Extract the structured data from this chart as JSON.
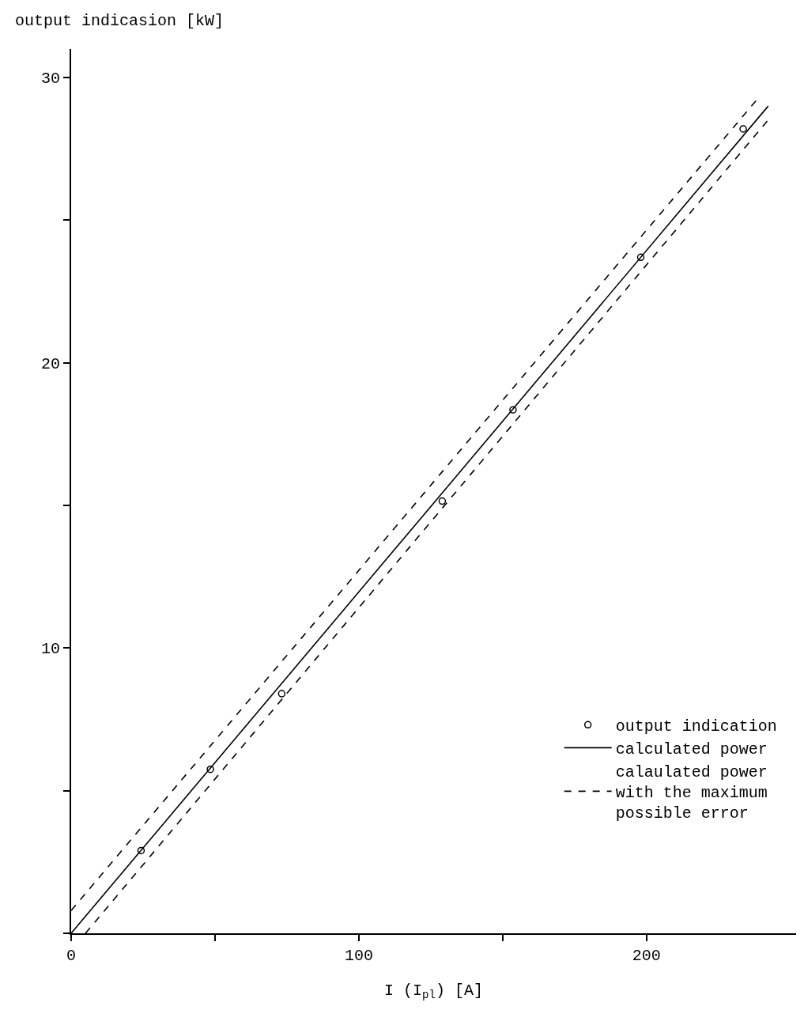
{
  "chart_data": {
    "type": "scatter",
    "ylabel": "output indicasion [kW]",
    "xlabel": "I (I$_{pl}$) [A]",
    "xlim": [
      0,
      252
    ],
    "ylim": [
      0,
      31
    ],
    "xticks": [
      0,
      {
        "value": 50,
        "label": null
      },
      100,
      {
        "value": 150,
        "label": null
      },
      200
    ],
    "yticks": [
      {
        "value": 0,
        "label": null
      },
      {
        "value": 5,
        "label": null
      },
      10,
      {
        "value": 15,
        "label": null
      },
      20,
      {
        "value": 25,
        "label": null
      },
      30
    ],
    "legend": "bottom right",
    "series": [
      {
        "name": "output indication",
        "marker": "circle",
        "color": "#000000",
        "x": [
          24.3,
          48.4,
          73.2,
          129,
          153.6,
          198,
          233.6
        ],
        "values": [
          2.9,
          5.75,
          8.4,
          15.15,
          18.35,
          23.7,
          28.2
        ]
      },
      {
        "name": "calculated power",
        "type": "line",
        "marker": "none",
        "line_style": "solid",
        "color": "#000000",
        "x": [
          0,
          242.3
        ],
        "values": [
          0,
          29.0
        ]
      },
      {
        "name": "calaulated power with the maximum possible error",
        "type": "line",
        "marker": "none",
        "line_style": "dashed",
        "color": "#000000",
        "x": [
          0,
          239
        ],
        "values": [
          0.8,
          29.3
        ]
      },
      {
        "type": "line",
        "marker": "none",
        "line_style": "dashed",
        "color": "#000000",
        "x": [
          5,
          243
        ],
        "values": [
          0,
          28.6
        ]
      }
    ]
  }
}
